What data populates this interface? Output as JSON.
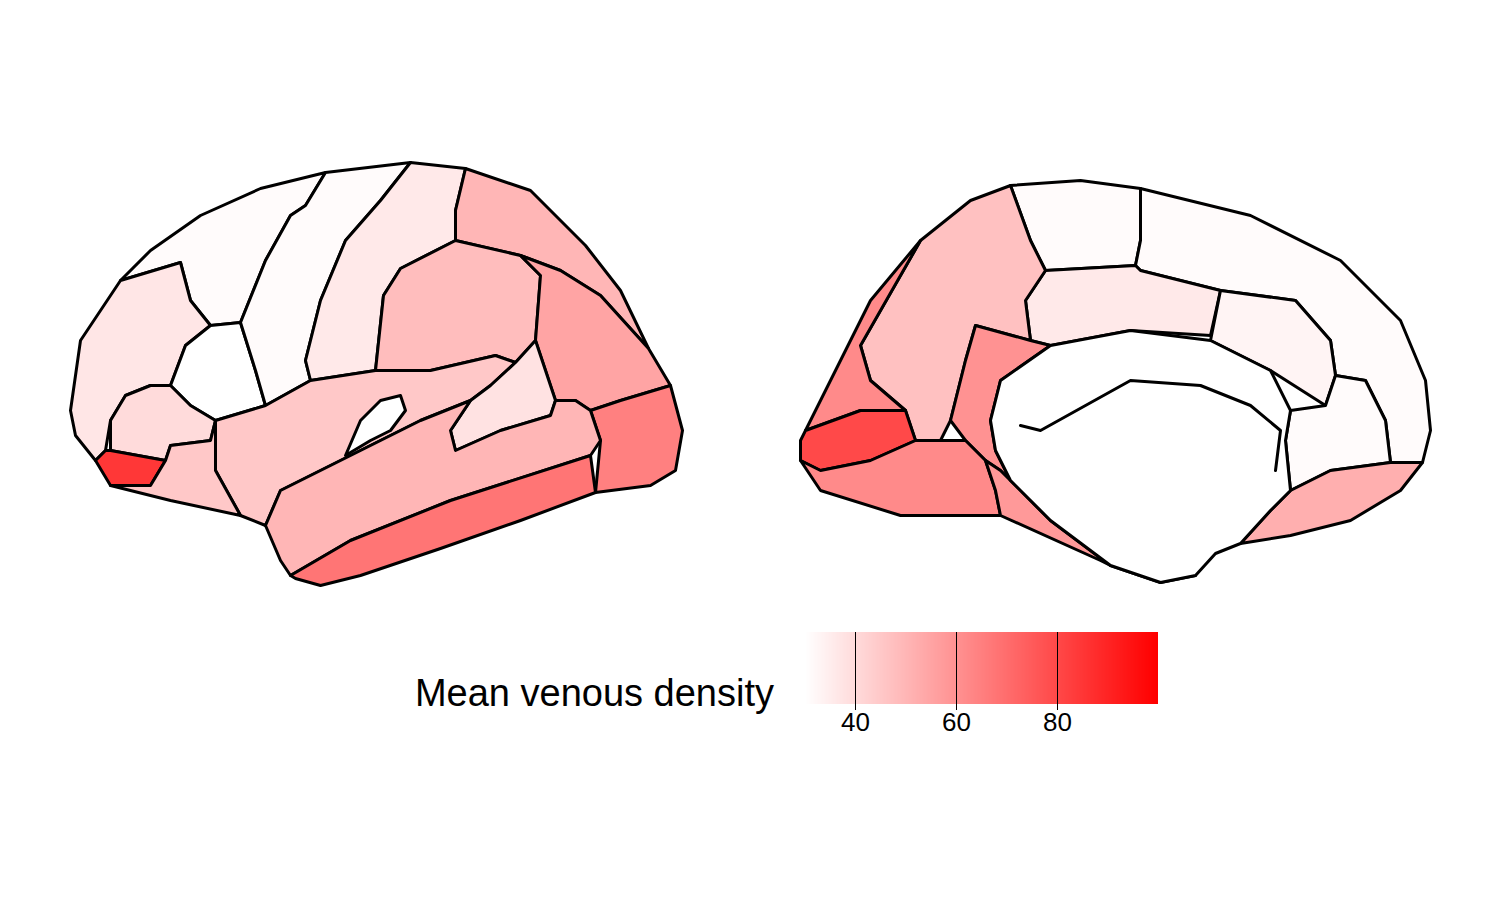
{
  "chart_data": {
    "type": "choropleth",
    "color_label": "Mean venous density",
    "color_range": [
      30,
      100
    ],
    "color_ticks": [
      40,
      60,
      80
    ],
    "color": "#ff0000",
    "values": [
      31,
      37,
      30,
      31,
      36,
      50,
      48,
      55,
      65,
      45,
      38,
      50,
      68,
      30,
      40,
      85,
      45,
      31,
      31,
      36,
      33,
      31,
      52,
      47,
      60,
      62,
      80,
      62,
      58,
      72
    ]
  }
}
